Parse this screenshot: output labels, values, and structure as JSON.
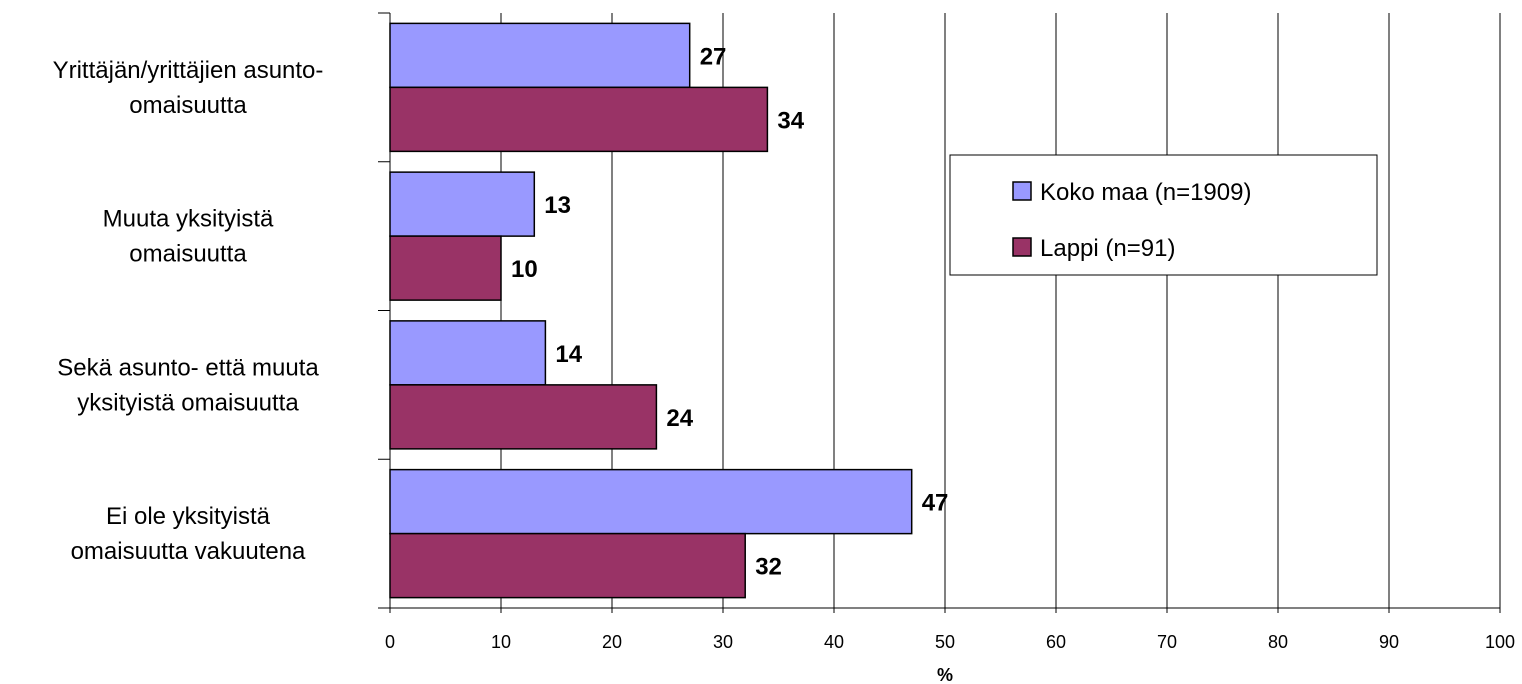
{
  "chart_data": {
    "type": "bar",
    "orientation": "horizontal",
    "categories": [
      [
        "Yrittäjän/yrittäjien asunto-",
        "omaisuutta"
      ],
      [
        "Muuta yksityistä",
        "omaisuutta"
      ],
      [
        "Sekä asunto- että muuta",
        "yksityistä omaisuutta"
      ],
      [
        "Ei ole yksityistä",
        "omaisuutta vakuutena"
      ]
    ],
    "series": [
      {
        "name": "Koko maa (n=1909)",
        "color": "#9999ff",
        "values": [
          27,
          13,
          14,
          47
        ]
      },
      {
        "name": "Lappi (n=91)",
        "color": "#993366",
        "values": [
          34,
          10,
          24,
          32
        ]
      }
    ],
    "xlabel": "%",
    "xlim": [
      0,
      100
    ],
    "xticks": [
      0,
      10,
      20,
      30,
      40,
      50,
      60,
      70,
      80,
      90,
      100
    ],
    "grid": true,
    "legend_position": "right"
  }
}
